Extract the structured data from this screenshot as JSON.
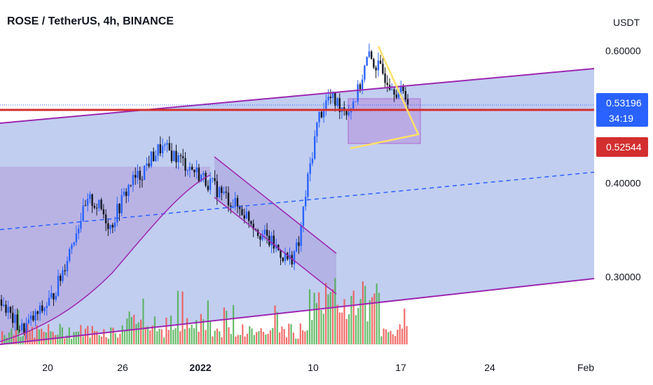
{
  "header": {
    "title": "ROSE / TetherUS, 4h, BINANCE",
    "currency": "USDT"
  },
  "price_tags": {
    "last_price": "0.53196",
    "countdown": "34:19",
    "level_price": "0.52544"
  },
  "colors": {
    "last_price_bg": "#2962ff",
    "level_bg": "#d32f2f",
    "channel_fill": "#9fb4e8",
    "channel_line": "#9c27b0",
    "candle_up": "#131722",
    "candle_down": "#131722",
    "candle_body_up": "#ffffff",
    "volume_up": "#4caf50",
    "volume_down": "#ef5350",
    "level_line": "#d32f2f",
    "midline": "#2962ff",
    "triangle": "#ffe066",
    "box": "#b06ad0"
  },
  "chart_data": {
    "type": "candlestick",
    "title": "ROSE / TetherUS, 4h, BINANCE",
    "ylabel": "USDT",
    "y_scale": "log",
    "ylim": [
      0.245,
      0.63
    ],
    "y_ticks": [
      "0.60000",
      "0.40000",
      "0.30000"
    ],
    "x_ticks": [
      "20",
      "26",
      "2022",
      "10",
      "17",
      "24",
      "Feb"
    ],
    "x_tick_bold": [
      "2022"
    ],
    "grid": false,
    "series": [
      {
        "kind": "price_close_approx",
        "values": [
          0.28,
          0.265,
          0.255,
          0.262,
          0.27,
          0.28,
          0.3,
          0.33,
          0.36,
          0.38,
          0.37,
          0.35,
          0.375,
          0.4,
          0.41,
          0.43,
          0.445,
          0.44,
          0.43,
          0.42,
          0.41,
          0.4,
          0.39,
          0.38,
          0.37,
          0.36,
          0.345,
          0.335,
          0.325,
          0.315,
          0.33,
          0.41,
          0.49,
          0.52,
          0.51,
          0.5,
          0.53,
          0.59,
          0.57,
          0.55,
          0.53,
          0.52
        ]
      }
    ],
    "annotations": {
      "horizontal_level": 0.525,
      "last_price": 0.53196,
      "channel": "ascending regression channel with dashed midline",
      "patterns": [
        "descending channel",
        "symmetrical triangle",
        "consolidation box"
      ]
    }
  }
}
